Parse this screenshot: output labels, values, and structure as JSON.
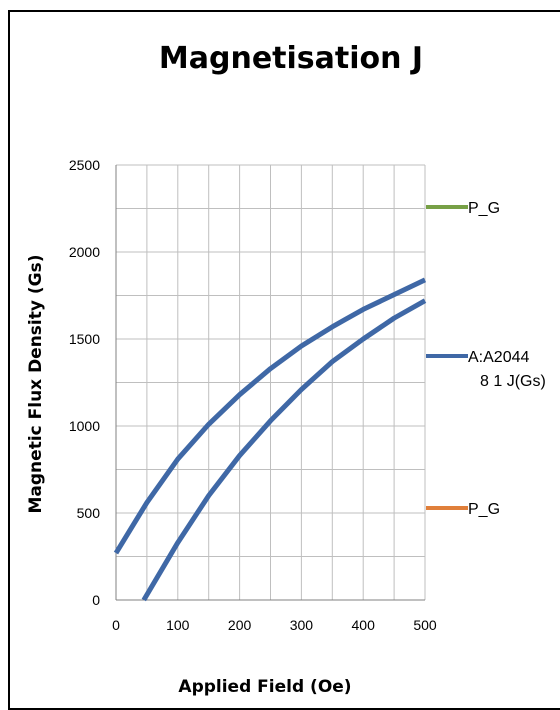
{
  "chart_data": {
    "type": "line",
    "title": "Magnetisation J",
    "xlabel": "Applied Field (Oe)",
    "ylabel": "Magnetic Flux Density (Gs)",
    "xlim": [
      0,
      500
    ],
    "ylim": [
      0,
      2500
    ],
    "xticks": [
      0,
      100,
      200,
      300,
      400,
      500
    ],
    "yticks": [
      0,
      500,
      1000,
      1500,
      2000,
      2500
    ],
    "grid": true,
    "legend_position": "right",
    "legend": [
      {
        "label": "P_G",
        "color": "#77a046"
      },
      {
        "label": "A:A2044",
        "label2": "8 1 J(Gs)",
        "color": "#3f68a6"
      },
      {
        "label": "P_G",
        "color": "#e07f3a"
      }
    ],
    "series": [
      {
        "color": "#3f68a6",
        "x": [
          0,
          50,
          100,
          150,
          200,
          250,
          300,
          350,
          370,
          400,
          450,
          500
        ],
        "y": [
          270,
          560,
          810,
          1010,
          1180,
          1330,
          1460,
          1570,
          1610,
          1670,
          1755,
          1840
        ]
      },
      {
        "color": "#3f68a6",
        "x": [
          45,
          100,
          150,
          200,
          250,
          300,
          350,
          400,
          450,
          500
        ],
        "y": [
          0,
          330,
          600,
          830,
          1030,
          1210,
          1370,
          1500,
          1620,
          1720
        ]
      }
    ]
  }
}
